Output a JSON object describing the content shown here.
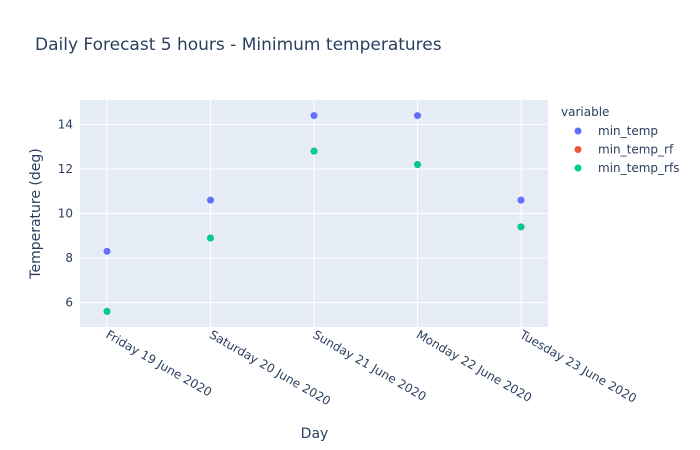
{
  "chart_data": {
    "type": "scatter",
    "title": "Daily Forecast 5 hours - Minimum temperatures",
    "xlabel": "Day",
    "ylabel": "Temperature (deg)",
    "categories": [
      "Friday 19 June 2020",
      "Saturday 20 June 2020",
      "Sunday 21 June 2020",
      "Monday 22 June 2020",
      "Tuesday 23 June 2020"
    ],
    "ylim": [
      4.9,
      15.1
    ],
    "yticks": [
      6,
      8,
      10,
      12,
      14
    ],
    "grid": true,
    "legend_title": "variable",
    "legend_position": "top-right",
    "series": [
      {
        "name": "min_temp",
        "color": "#636efa",
        "values": [
          8.3,
          10.6,
          14.4,
          14.4,
          10.6
        ]
      },
      {
        "name": "min_temp_rf",
        "color": "#EF553B",
        "values": [
          5.6,
          8.9,
          12.8,
          12.2,
          9.4
        ]
      },
      {
        "name": "min_temp_rfs",
        "color": "#00cc96",
        "values": [
          5.6,
          8.9,
          12.8,
          12.2,
          9.4
        ]
      }
    ]
  }
}
